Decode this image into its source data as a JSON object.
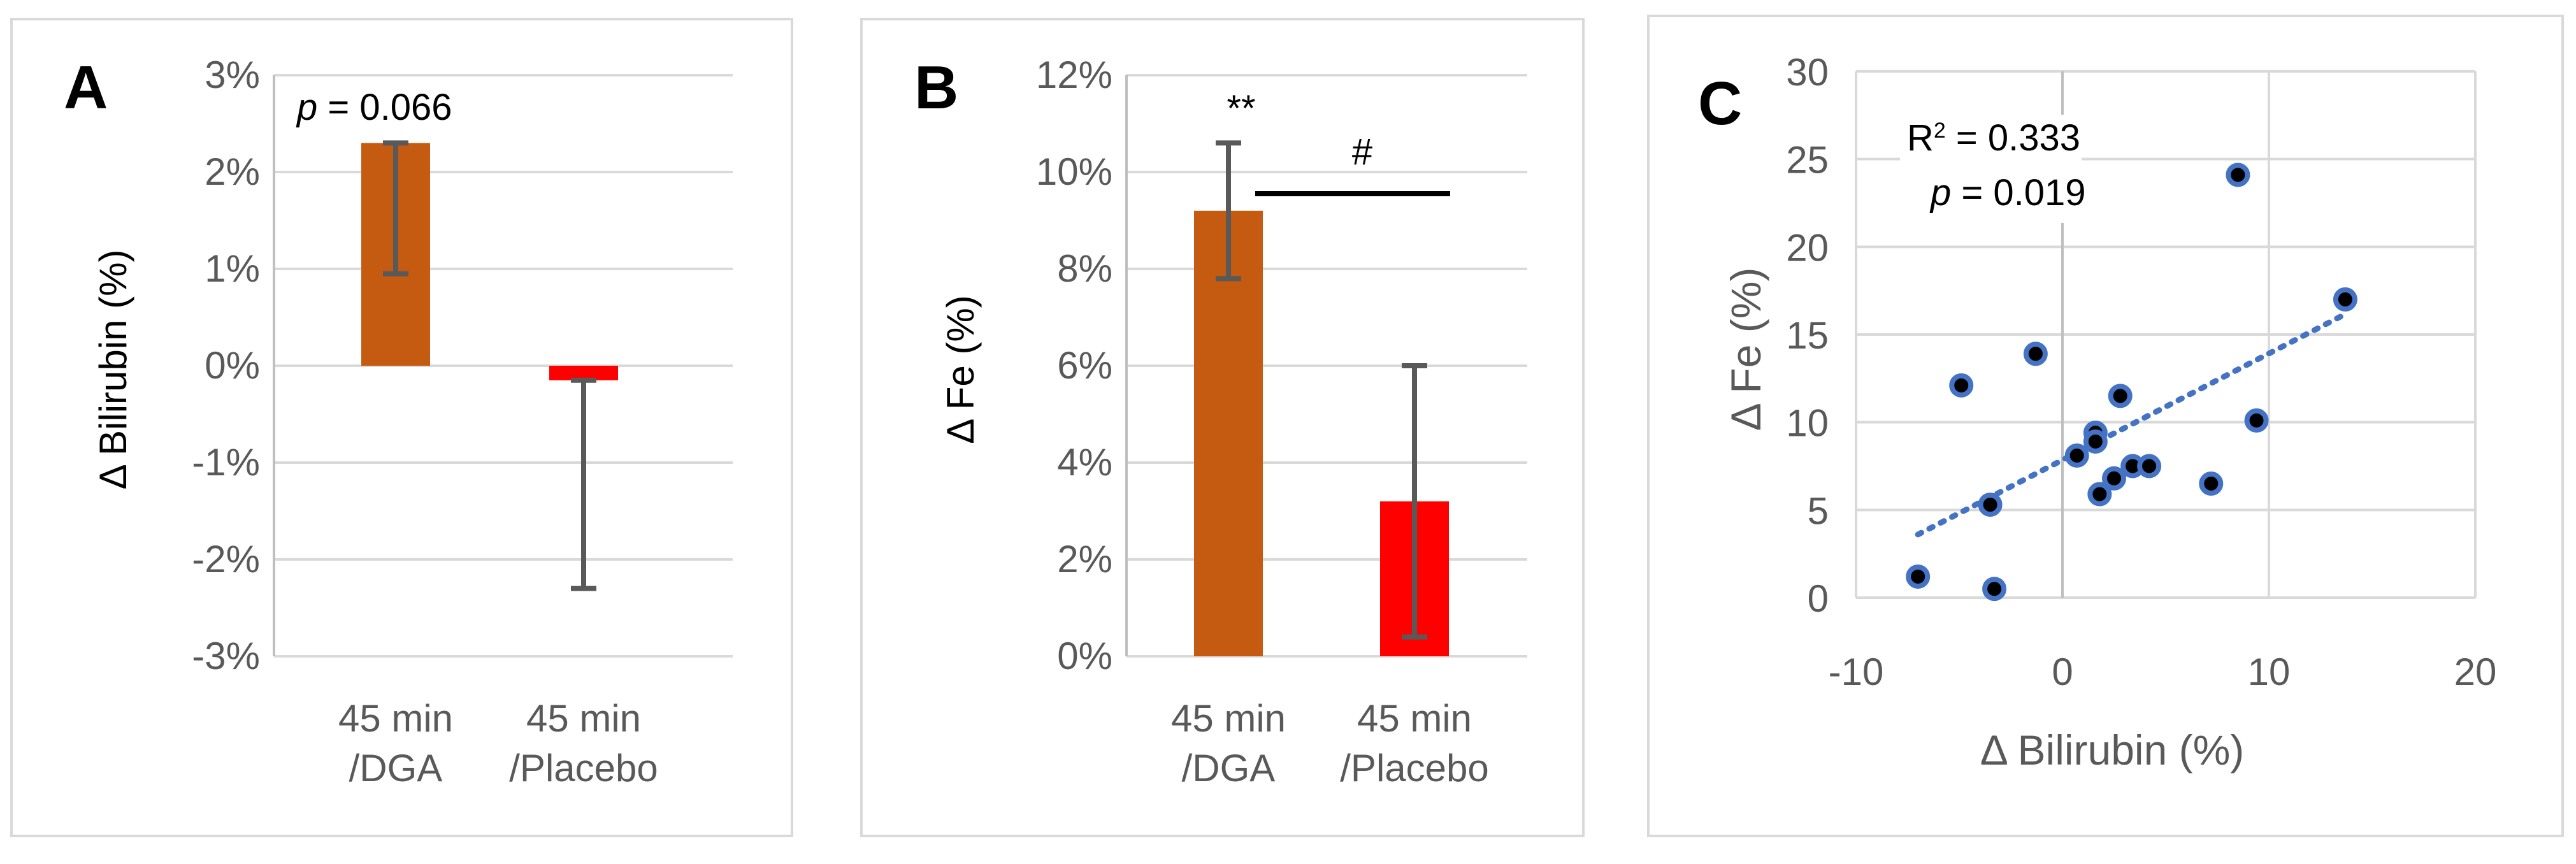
{
  "colors": {
    "bar_dga": "#c55a11",
    "bar_placebo": "#ff0000",
    "scatter_point": "#4472c4",
    "trendline": "#4472c4",
    "error_bar": "#595959"
  },
  "chart_data": [
    {
      "panel": "A",
      "type": "bar",
      "categories": [
        [
          "45 min",
          "/DGA"
        ],
        [
          "45 min",
          "/Placebo"
        ]
      ],
      "values": [
        2.3,
        -0.15
      ],
      "error_bars": [
        {
          "low": 0.95,
          "high": 2.3
        },
        {
          "low": -2.3,
          "high": -0.15
        }
      ],
      "ylabel": "Δ Bilirubin (%)",
      "ylim": [
        -3,
        3
      ],
      "yticks": [
        "-3%",
        "-2%",
        "-1%",
        "0%",
        "1%",
        "2%",
        "3%"
      ],
      "annotation": {
        "p_label": "p",
        "p_value": "= 0.066"
      }
    },
    {
      "panel": "B",
      "type": "bar",
      "categories": [
        [
          "45 min",
          "/DGA"
        ],
        [
          "45 min",
          "/Placebo"
        ]
      ],
      "values": [
        9.2,
        3.2
      ],
      "error_bars": [
        {
          "low": 7.8,
          "high": 10.6
        },
        {
          "low": 0.4,
          "high": 6.0
        }
      ],
      "ylabel": "Δ Fe (%)",
      "ylim": [
        0,
        12
      ],
      "yticks": [
        "0%",
        "2%",
        "4%",
        "6%",
        "8%",
        "10%",
        "12%"
      ],
      "annotations": {
        "significance": "**",
        "between_groups": "#"
      }
    },
    {
      "panel": "C",
      "type": "scatter",
      "xlabel": "Δ Bilirubin (%)",
      "ylabel": "Δ Fe (%)",
      "xlim": [
        -10,
        20
      ],
      "ylim": [
        0,
        30
      ],
      "xticks": [
        "-10",
        "0",
        "10",
        "20"
      ],
      "yticks": [
        "0",
        "5",
        "10",
        "15",
        "20",
        "25",
        "30"
      ],
      "points": [
        {
          "x": -7.0,
          "y": 1.2
        },
        {
          "x": -4.9,
          "y": 12.1
        },
        {
          "x": -3.3,
          "y": 0.5
        },
        {
          "x": -3.5,
          "y": 5.3
        },
        {
          "x": -1.3,
          "y": 13.9
        },
        {
          "x": 0.7,
          "y": 8.1
        },
        {
          "x": 1.6,
          "y": 9.4
        },
        {
          "x": 1.6,
          "y": 8.9
        },
        {
          "x": 1.8,
          "y": 5.9
        },
        {
          "x": 2.5,
          "y": 6.8
        },
        {
          "x": 2.8,
          "y": 11.5
        },
        {
          "x": 3.4,
          "y": 7.5
        },
        {
          "x": 4.2,
          "y": 7.5
        },
        {
          "x": 7.2,
          "y": 6.5
        },
        {
          "x": 8.5,
          "y": 24.1
        },
        {
          "x": 9.4,
          "y": 10.1
        },
        {
          "x": 13.7,
          "y": 17.0
        }
      ],
      "trendline": {
        "x1": -7.0,
        "y1": 3.6,
        "x2": 13.6,
        "y2": 16.1
      },
      "annotation": {
        "r2_prefix": "R",
        "r2_sup": "2",
        "r2_value": " = 0.333",
        "p_label": "p",
        "p_value": "= 0.019"
      }
    }
  ],
  "panels": {
    "a": "A",
    "b": "B",
    "c": "C"
  }
}
